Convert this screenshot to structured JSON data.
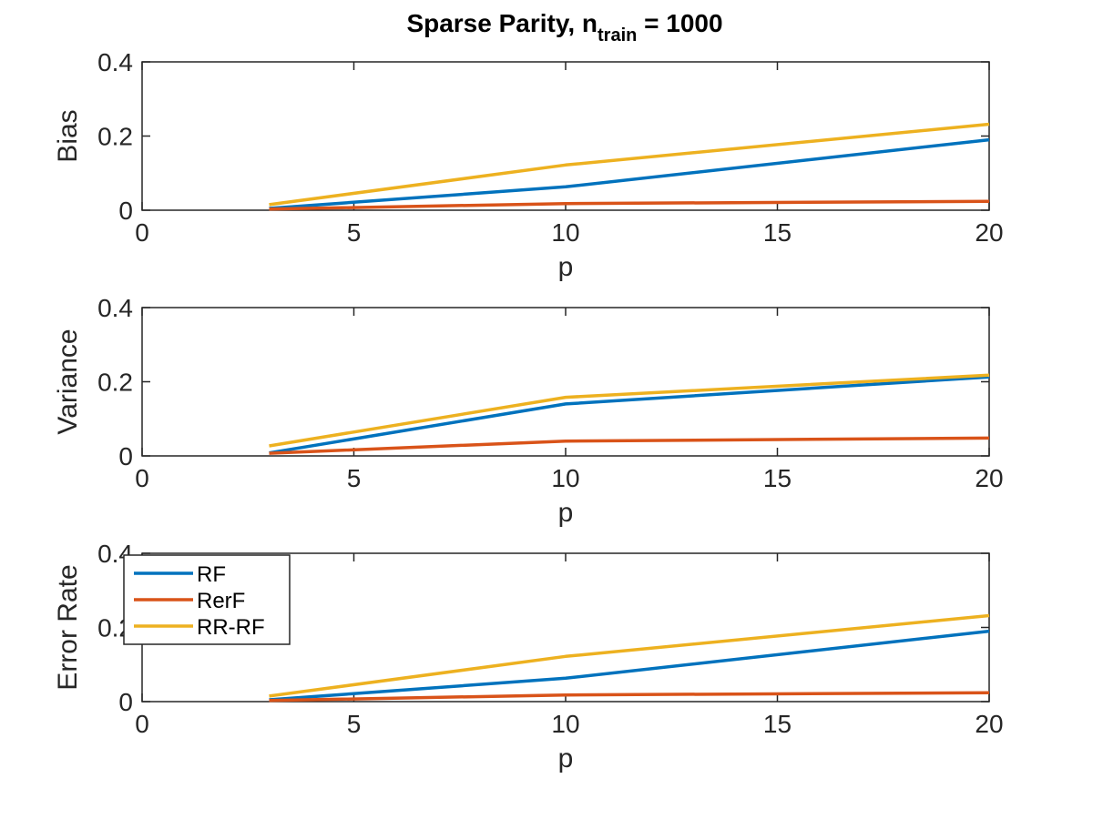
{
  "chart_data": {
    "type": "line",
    "title": "Sparse Parity, ntrain = 1000",
    "title_main": "Sparse Parity, n",
    "title_sub": "train",
    "title_tail": " = 1000",
    "xlim": [
      0,
      20
    ],
    "xticks": [
      0,
      5,
      10,
      15,
      20
    ],
    "series_colors": {
      "RF": "#0072bd",
      "RerF": "#d95319",
      "RR-RF": "#edb120"
    },
    "legend": {
      "entries": [
        "RF",
        "RerF",
        "RR-RF"
      ],
      "location": "top-left of bottom panel"
    },
    "panels": [
      {
        "ylabel": "Bias",
        "xlabel": "p",
        "ylim": [
          0,
          0.4
        ],
        "yticks": [
          0,
          0.2,
          0.4
        ],
        "ytick_labels": [
          "0",
          "0.2",
          "0.4"
        ],
        "x": [
          3,
          10,
          20
        ],
        "series": [
          {
            "name": "RF",
            "values": [
              0.005,
              0.063,
              0.19
            ]
          },
          {
            "name": "RerF",
            "values": [
              0.003,
              0.018,
              0.024
            ]
          },
          {
            "name": "RR-RF",
            "values": [
              0.015,
              0.122,
              0.232
            ]
          }
        ]
      },
      {
        "ylabel": "Variance",
        "xlabel": "p",
        "ylim": [
          0,
          0.4
        ],
        "yticks": [
          0,
          0.2,
          0.4
        ],
        "ytick_labels": [
          "0",
          "0.2",
          "0.4"
        ],
        "x": [
          3,
          10,
          20
        ],
        "series": [
          {
            "name": "RF",
            "values": [
              0.008,
              0.14,
              0.213
            ]
          },
          {
            "name": "RerF",
            "values": [
              0.007,
              0.04,
              0.048
            ]
          },
          {
            "name": "RR-RF",
            "values": [
              0.027,
              0.158,
              0.218
            ]
          }
        ]
      },
      {
        "ylabel": "Error Rate",
        "xlabel": "p",
        "ylim": [
          0,
          0.4
        ],
        "yticks": [
          0,
          0.2,
          0.4
        ],
        "ytick_labels": [
          "0",
          "0.2",
          "0.4"
        ],
        "x": [
          3,
          10,
          20
        ],
        "series": [
          {
            "name": "RF",
            "values": [
              0.005,
              0.063,
              0.19
            ]
          },
          {
            "name": "RerF",
            "values": [
              0.003,
              0.018,
              0.024
            ]
          },
          {
            "name": "RR-RF",
            "values": [
              0.015,
              0.122,
              0.232
            ]
          }
        ]
      }
    ]
  }
}
